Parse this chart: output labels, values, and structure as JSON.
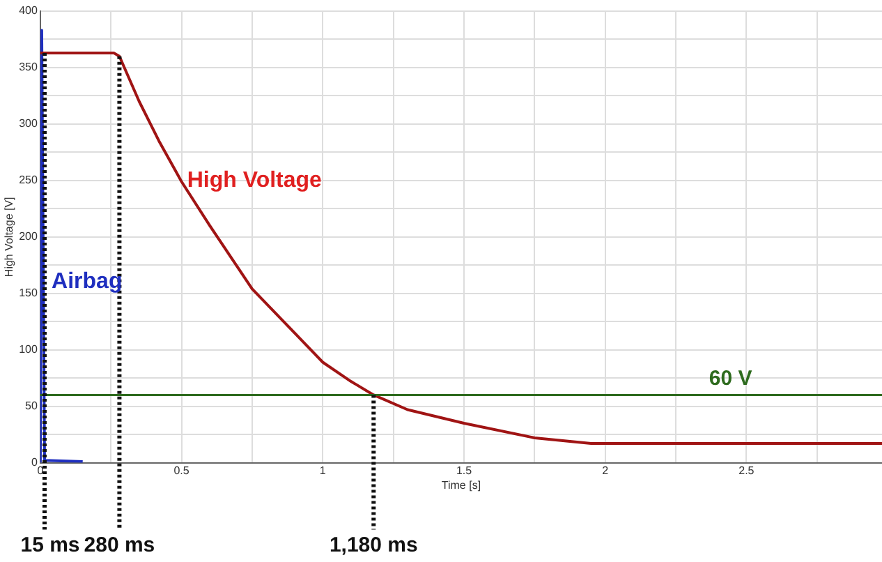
{
  "chart_data": {
    "type": "line",
    "xlabel": "Time [s]",
    "ylabel": "High Voltage [V]",
    "xlim": [
      0,
      2.98
    ],
    "ylim": [
      0,
      400
    ],
    "xticks": [
      0,
      {
        "value": 0.25,
        "label": null
      },
      0.5,
      {
        "value": 0.75,
        "label": null
      },
      1,
      {
        "value": 1.25,
        "label": null
      },
      1.5,
      {
        "value": 1.75,
        "label": null
      },
      2,
      {
        "value": 2.25,
        "label": null
      },
      2.5,
      {
        "value": 2.75,
        "label": null
      }
    ],
    "yticks": [
      0,
      {
        "value": 25,
        "label": null
      },
      50,
      {
        "value": 75,
        "label": null
      },
      100,
      {
        "value": 125,
        "label": null
      },
      150,
      {
        "value": 175,
        "label": null
      },
      200,
      {
        "value": 225,
        "label": null
      },
      250,
      {
        "value": 275,
        "label": null
      },
      300,
      {
        "value": 325,
        "label": null
      },
      350,
      {
        "value": 375,
        "label": null
      },
      400
    ],
    "grid": true,
    "legend": false,
    "marker": "none",
    "series": [
      {
        "name": "High Voltage",
        "color": "#a01414",
        "x": [
          0,
          0.26,
          0.28,
          0.35,
          0.42,
          0.5,
          0.6,
          0.75,
          0.9,
          1,
          1.1,
          1.18,
          1.3,
          1.5,
          1.75,
          1.95,
          2.5,
          2.98
        ],
        "values": [
          363,
          363,
          360,
          320,
          285,
          249,
          210,
          154,
          115,
          89,
          72,
          60,
          47,
          35,
          22,
          17,
          17,
          17
        ]
      },
      {
        "name": "Airbag",
        "color": "#1f2fbf",
        "x": [
          0,
          0.005,
          0.015,
          0.15
        ],
        "values": [
          0,
          383,
          2,
          1
        ]
      }
    ],
    "ref_lines": [
      {
        "axis": "y",
        "value": 60,
        "label": "60 V",
        "color": "#2e6b1e",
        "line_style": "solid"
      },
      {
        "axis": "x",
        "value": 0.015,
        "label": "15 ms",
        "color": "#111111",
        "line_style": "dotted"
      },
      {
        "axis": "x",
        "value": 0.28,
        "label": "280 ms",
        "color": "#111111",
        "line_style": "dotted"
      },
      {
        "axis": "x",
        "value": 1.18,
        "label": "1,180 ms",
        "color": "#111111",
        "line_style": "dotted"
      }
    ]
  }
}
